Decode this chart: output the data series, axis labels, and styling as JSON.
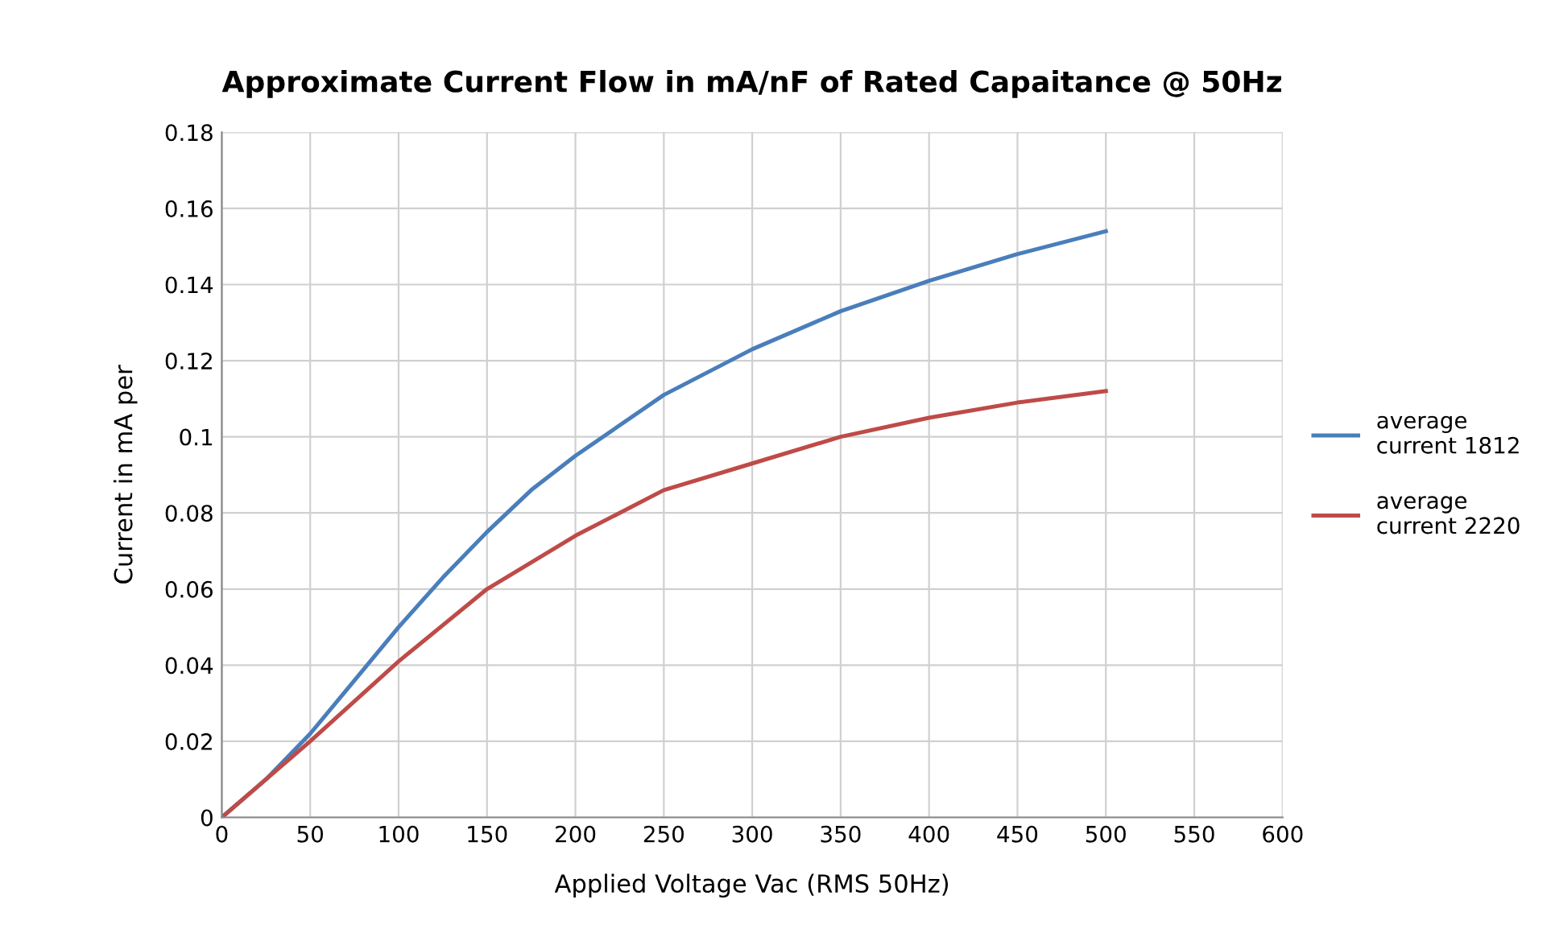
{
  "chart_data": {
    "type": "line",
    "title": "Approximate Current Flow in mA/nF of Rated Capaitance @ 50Hz",
    "xlabel": "Applied Voltage Vac (RMS 50Hz)",
    "ylabel": "Current in mA per",
    "series": [
      {
        "name": "average\ncurrent 1812",
        "color": "#4a7ebb",
        "x": [
          0,
          25,
          50,
          75,
          100,
          125,
          150,
          175,
          200,
          250,
          300,
          350,
          400,
          450,
          500
        ],
        "values": [
          0,
          0.01,
          0.022,
          0.036,
          0.05,
          0.063,
          0.075,
          0.086,
          0.095,
          0.111,
          0.123,
          0.133,
          0.141,
          0.148,
          0.154
        ]
      },
      {
        "name": "average\ncurrent 2220",
        "color": "#be4b48",
        "x": [
          0,
          50,
          100,
          150,
          200,
          250,
          300,
          350,
          400,
          450,
          500
        ],
        "values": [
          0,
          0.02,
          0.041,
          0.06,
          0.074,
          0.086,
          0.093,
          0.1,
          0.105,
          0.109,
          0.112
        ]
      }
    ],
    "xlim": [
      0,
      600
    ],
    "xticks": [
      0,
      50,
      100,
      150,
      200,
      250,
      300,
      350,
      400,
      450,
      500,
      550,
      600
    ],
    "ylim": [
      0,
      0.18
    ],
    "yticks": [
      0,
      0.02,
      0.04,
      0.06,
      0.08,
      0.1,
      0.12,
      0.14,
      0.16,
      0.18
    ],
    "grid": true,
    "legend": "right",
    "marker": "none",
    "line_style": "solid"
  }
}
